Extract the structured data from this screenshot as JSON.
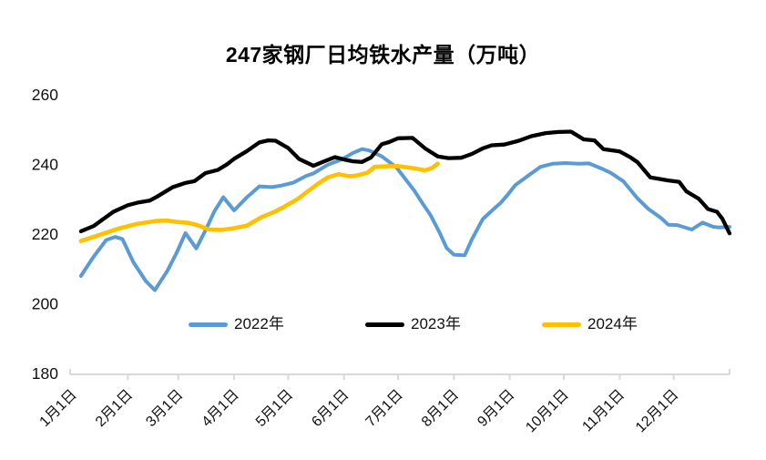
{
  "chart": {
    "title": "247家钢厂日均铁水产量（万吨）"
  },
  "chart_data": {
    "type": "line",
    "title": "247家钢厂日均铁水产量（万吨）",
    "ylabel": "",
    "xlabel": "",
    "ylim": [
      180,
      260
    ],
    "y_ticks": [
      260,
      240,
      220,
      200,
      180
    ],
    "x_tick_labels": [
      "1月1日",
      "2月1日",
      "3月1日",
      "4月1日",
      "5月1日",
      "6月1日",
      "7月1日",
      "8月1日",
      "9月1日",
      "10月1日",
      "11月1日",
      "12月1日"
    ],
    "x_tick_days": [
      0,
      31,
      59,
      90,
      120,
      151,
      181,
      212,
      243,
      273,
      304,
      334
    ],
    "x_axis_end_day": 365,
    "grid": false,
    "legend_position": "inside-bottom-center",
    "axis_color": "#d9d9d9",
    "text_color": "#111111",
    "series": [
      {
        "name": "2022年",
        "color": "#5b9bd5",
        "points": [
          [
            5,
            208
          ],
          [
            12,
            213.5
          ],
          [
            19,
            218.3
          ],
          [
            24,
            219.2
          ],
          [
            28,
            218.6
          ],
          [
            34,
            212
          ],
          [
            41,
            206.5
          ],
          [
            46,
            203.9
          ],
          [
            53,
            209.5
          ],
          [
            58,
            214.5
          ],
          [
            63,
            220.3
          ],
          [
            69,
            215.9
          ],
          [
            75,
            222
          ],
          [
            79,
            226.5
          ],
          [
            84,
            230.6
          ],
          [
            90,
            226.8
          ],
          [
            97,
            230.5
          ],
          [
            104,
            233.7
          ],
          [
            111,
            233.5
          ],
          [
            116,
            233.9
          ],
          [
            123,
            234.8
          ],
          [
            130,
            236.7
          ],
          [
            134,
            237.4
          ],
          [
            142,
            239.9
          ],
          [
            150,
            241.5
          ],
          [
            156,
            243.3
          ],
          [
            161,
            244.4
          ],
          [
            165,
            244
          ],
          [
            172,
            242.3
          ],
          [
            180,
            239.2
          ],
          [
            184,
            236.5
          ],
          [
            190,
            232.5
          ],
          [
            195,
            228.5
          ],
          [
            199,
            225.5
          ],
          [
            204,
            220.5
          ],
          [
            208,
            216
          ],
          [
            212,
            214.1
          ],
          [
            218,
            213.9
          ],
          [
            222,
            218.5
          ],
          [
            228,
            224.3
          ],
          [
            233,
            226.7
          ],
          [
            238,
            229
          ],
          [
            242,
            231.4
          ],
          [
            246,
            234
          ],
          [
            253,
            236.7
          ],
          [
            260,
            239.3
          ],
          [
            267,
            240.2
          ],
          [
            274,
            240.4
          ],
          [
            281,
            240.2
          ],
          [
            287,
            240.3
          ],
          [
            294,
            238.8
          ],
          [
            299,
            237.6
          ],
          [
            306,
            235.2
          ],
          [
            314,
            230.2
          ],
          [
            320,
            227.2
          ],
          [
            327,
            224.6
          ],
          [
            331,
            222.7
          ],
          [
            336,
            222.6
          ],
          [
            344,
            221.3
          ],
          [
            350,
            223.3
          ],
          [
            356,
            222.1
          ],
          [
            359,
            221.9
          ],
          [
            365,
            222.1
          ]
        ]
      },
      {
        "name": "2023年",
        "color": "#000000",
        "points": [
          [
            5,
            220.8
          ],
          [
            12,
            222.3
          ],
          [
            16,
            223.8
          ],
          [
            23,
            226.4
          ],
          [
            31,
            228.3
          ],
          [
            37,
            229.1
          ],
          [
            43,
            229.6
          ],
          [
            47,
            230.7
          ],
          [
            56,
            233.5
          ],
          [
            63,
            234.7
          ],
          [
            68,
            235.2
          ],
          [
            74,
            237.5
          ],
          [
            81,
            238.4
          ],
          [
            86,
            240
          ],
          [
            90,
            241.6
          ],
          [
            97,
            243.8
          ],
          [
            104,
            246.3
          ],
          [
            109,
            246.9
          ],
          [
            113,
            246.8
          ],
          [
            120,
            244.7
          ],
          [
            126,
            241.6
          ],
          [
            134,
            239.6
          ],
          [
            140,
            240.9
          ],
          [
            146,
            242.1
          ],
          [
            151,
            241.4
          ],
          [
            156,
            240.9
          ],
          [
            161,
            240.7
          ],
          [
            166,
            242
          ],
          [
            172,
            245.8
          ],
          [
            176,
            246.4
          ],
          [
            181,
            247.5
          ],
          [
            189,
            247.6
          ],
          [
            196,
            244.6
          ],
          [
            203,
            242.3
          ],
          [
            209,
            241.8
          ],
          [
            216,
            241.9
          ],
          [
            222,
            243
          ],
          [
            228,
            244.6
          ],
          [
            233,
            245.5
          ],
          [
            240,
            245.7
          ],
          [
            248,
            246.8
          ],
          [
            255,
            248.1
          ],
          [
            263,
            249
          ],
          [
            270,
            249.3
          ],
          [
            277,
            249.4
          ],
          [
            284,
            247.2
          ],
          [
            290,
            246.9
          ],
          [
            295,
            244.4
          ],
          [
            304,
            243.7
          ],
          [
            310,
            242
          ],
          [
            314,
            240.6
          ],
          [
            321,
            236.3
          ],
          [
            331,
            235.4
          ],
          [
            337,
            235
          ],
          [
            341,
            232.3
          ],
          [
            348,
            230.1
          ],
          [
            353,
            227.2
          ],
          [
            358,
            226.4
          ],
          [
            361,
            224.4
          ],
          [
            365,
            220.2
          ]
        ]
      },
      {
        "name": "2024年",
        "color": "#ffc000",
        "points": [
          [
            5,
            218
          ],
          [
            16,
            219.9
          ],
          [
            26,
            221.6
          ],
          [
            36,
            222.9
          ],
          [
            47,
            223.8
          ],
          [
            53,
            223.9
          ],
          [
            58,
            223.5
          ],
          [
            65,
            223.2
          ],
          [
            70,
            222.5
          ],
          [
            76,
            221.3
          ],
          [
            83,
            221.2
          ],
          [
            90,
            221.7
          ],
          [
            97,
            222.4
          ],
          [
            105,
            224.8
          ],
          [
            112,
            226.3
          ],
          [
            118,
            227.9
          ],
          [
            125,
            230
          ],
          [
            132,
            232.7
          ],
          [
            137,
            234.6
          ],
          [
            142,
            236.3
          ],
          [
            148,
            237.2
          ],
          [
            154,
            236.6
          ],
          [
            158,
            236.8
          ],
          [
            164,
            237.6
          ],
          [
            168,
            239.3
          ],
          [
            175,
            239.5
          ],
          [
            181,
            239.5
          ],
          [
            186,
            239.2
          ],
          [
            191,
            238.8
          ],
          [
            196,
            238.3
          ],
          [
            200,
            239
          ],
          [
            203,
            240.2
          ]
        ]
      }
    ]
  }
}
